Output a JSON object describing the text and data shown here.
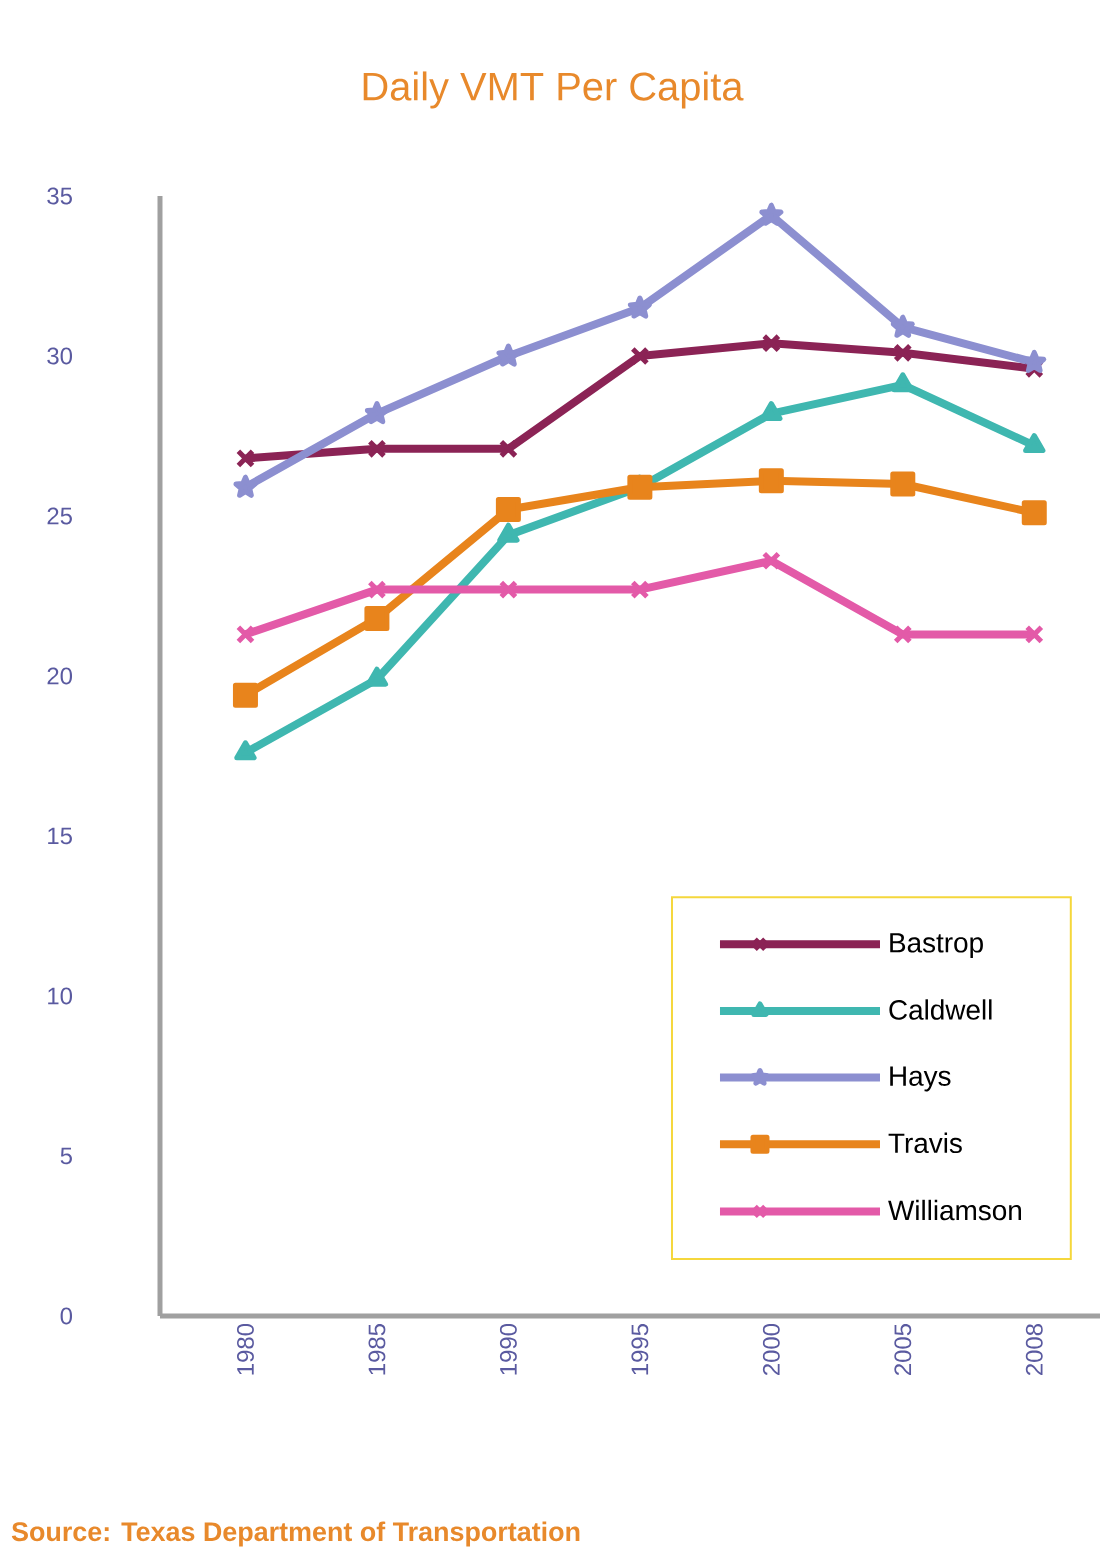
{
  "chart_data": {
    "type": "line",
    "title": "Daily VMT Per Capita",
    "categories": [
      "1980",
      "1985",
      "1990",
      "1995",
      "2000",
      "2005",
      "2008"
    ],
    "series": [
      {
        "name": "Bastrop",
        "color": "#8b2355",
        "marker": "cross",
        "values": [
          26.8,
          27.1,
          27.1,
          30.0,
          30.4,
          30.1,
          29.6
        ]
      },
      {
        "name": "Caldwell",
        "color": "#3fb7b0",
        "marker": "triangle",
        "values": [
          17.6,
          19.9,
          24.4,
          25.9,
          28.2,
          29.1,
          27.2
        ]
      },
      {
        "name": "Hays",
        "color": "#8c8fd0",
        "marker": "star",
        "values": [
          25.9,
          28.2,
          30.0,
          31.5,
          34.4,
          30.9,
          29.8
        ]
      },
      {
        "name": "Travis",
        "color": "#e8841c",
        "marker": "square",
        "values": [
          19.4,
          21.8,
          25.2,
          25.9,
          26.1,
          26.0,
          25.1
        ]
      },
      {
        "name": "Williamson",
        "color": "#e35aa8",
        "marker": "cross",
        "values": [
          21.3,
          22.7,
          22.7,
          22.7,
          23.6,
          21.3,
          21.3
        ]
      }
    ],
    "ylim": [
      0,
      35
    ],
    "yticks": [
      0,
      5,
      10,
      15,
      20,
      25,
      30,
      35
    ],
    "legend": "bottom right",
    "grid": false,
    "annotations": [
      "Source: Texas Department of Transportation"
    ]
  }
}
